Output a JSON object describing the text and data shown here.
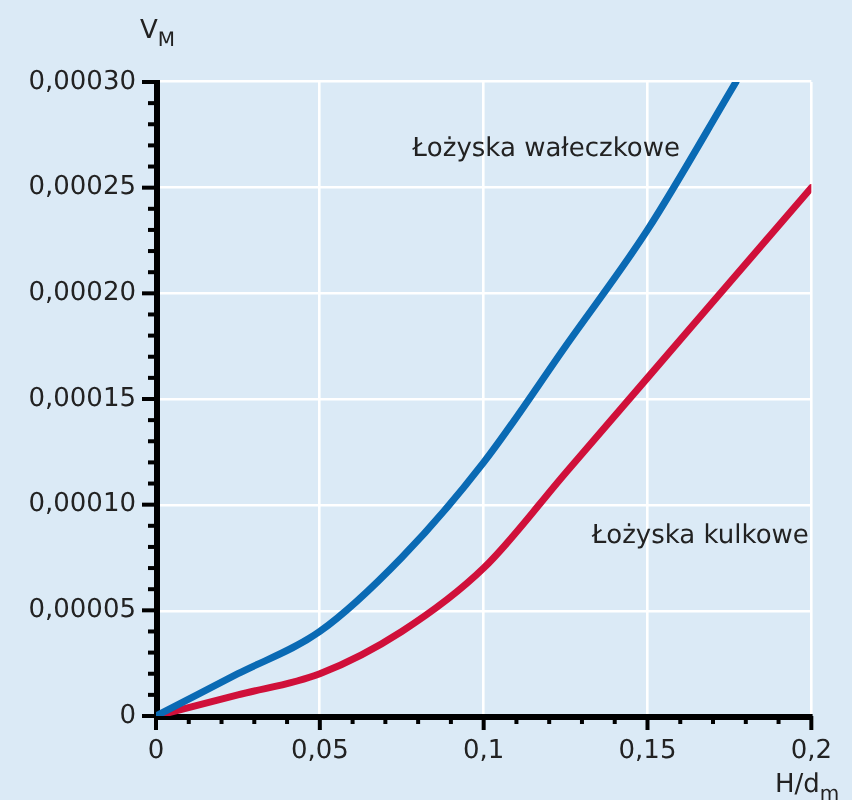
{
  "chart_data": {
    "type": "line",
    "xlabel": "H/d$_{m}$",
    "ylabel": "V$_{M}$",
    "xlim": [
      0,
      0.2
    ],
    "ylim": [
      0,
      0.0003
    ],
    "xticks": [
      0,
      {
        "value": 0.01,
        "label": null
      },
      {
        "value": 0.02,
        "label": null
      },
      {
        "value": 0.03,
        "label": null
      },
      {
        "value": 0.04,
        "label": null
      },
      {
        "value": 0.05,
        "label": "0,05"
      },
      {
        "value": 0.06,
        "label": null
      },
      {
        "value": 0.07,
        "label": null
      },
      {
        "value": 0.08,
        "label": null
      },
      {
        "value": 0.09,
        "label": null
      },
      {
        "value": 0.1,
        "label": "0,1"
      },
      {
        "value": 0.11,
        "label": null
      },
      {
        "value": 0.12,
        "label": null
      },
      {
        "value": 0.13,
        "label": null
      },
      {
        "value": 0.14,
        "label": null
      },
      {
        "value": 0.15,
        "label": "0,15"
      },
      {
        "value": 0.16,
        "label": null
      },
      {
        "value": 0.17,
        "label": null
      },
      {
        "value": 0.18,
        "label": null
      },
      {
        "value": 0.19,
        "label": null
      },
      {
        "value": 0.2,
        "label": "0,2"
      }
    ],
    "yticks": [
      0,
      {
        "value": 1e-05,
        "label": null
      },
      {
        "value": 2e-05,
        "label": null
      },
      {
        "value": 3e-05,
        "label": null
      },
      {
        "value": 4e-05,
        "label": null
      },
      {
        "value": 5e-05,
        "label": "0,00005"
      },
      {
        "value": 6e-05,
        "label": null
      },
      {
        "value": 7e-05,
        "label": null
      },
      {
        "value": 8e-05,
        "label": null
      },
      {
        "value": 9e-05,
        "label": null
      },
      {
        "value": 0.0001,
        "label": "0,00010"
      },
      {
        "value": 0.00011,
        "label": null
      },
      {
        "value": 0.00012,
        "label": null
      },
      {
        "value": 0.00013,
        "label": null
      },
      {
        "value": 0.00014,
        "label": null
      },
      {
        "value": 0.00015,
        "label": "0,00015"
      },
      {
        "value": 0.00016,
        "label": null
      },
      {
        "value": 0.00017,
        "label": null
      },
      {
        "value": 0.00018,
        "label": null
      },
      {
        "value": 0.00019,
        "label": null
      },
      {
        "value": 0.0002,
        "label": "0,00020"
      },
      {
        "value": 0.00021,
        "label": null
      },
      {
        "value": 0.00022,
        "label": null
      },
      {
        "value": 0.00023,
        "label": null
      },
      {
        "value": 0.00024,
        "label": null
      },
      {
        "value": 0.00025,
        "label": "0,00025"
      },
      {
        "value": 0.00026,
        "label": null
      },
      {
        "value": 0.00027,
        "label": null
      },
      {
        "value": 0.00028,
        "label": null
      },
      {
        "value": 0.00029,
        "label": null
      },
      {
        "value": 0.0003,
        "label": "0,00030"
      }
    ],
    "grid": true,
    "legend": false,
    "marker": "none",
    "line_style": "solid",
    "series": [
      {
        "name": "Łożyska wałeczkowe",
        "color": "#0a6ab4",
        "x": [
          0,
          0.025,
          0.05,
          0.075,
          0.1,
          0.125,
          0.15,
          0.177
        ],
        "values": [
          0,
          2e-05,
          4e-05,
          7.5e-05,
          0.00012,
          0.000175,
          0.00023,
          0.0003
        ]
      },
      {
        "name": "Łożyska kulkowe",
        "color": "#d0103a",
        "x": [
          0,
          0.025,
          0.05,
          0.075,
          0.1,
          0.125,
          0.15,
          0.175,
          0.2
        ],
        "values": [
          0,
          1e-05,
          2e-05,
          4e-05,
          7e-05,
          0.000115,
          0.00016,
          0.000205,
          0.00025
        ]
      }
    ]
  }
}
